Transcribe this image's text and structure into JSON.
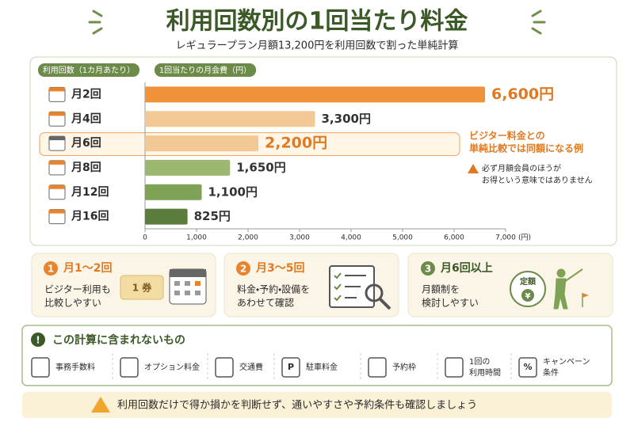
{
  "chart_data": {
    "type": "bar",
    "orientation": "horizontal",
    "title": "利用回数別の1回当たり料金",
    "subtitle": "レギュラープラン月額13,200円を利用回数で割った単純計算",
    "category_header": "利用回数（1カ月あたり）",
    "value_header": "1回当たりの月会費（円）",
    "categories": [
      "月2回",
      "月4回",
      "月6回",
      "月8回",
      "月12回",
      "月16回"
    ],
    "values": [
      6600,
      3300,
      2200,
      1650,
      1100,
      825
    ],
    "value_labels": [
      "6,600円",
      "3,300円",
      "2,200円",
      "1,650円",
      "1,100円",
      "825円"
    ],
    "colors": [
      "#f0923a",
      "#f2c994",
      "#f2c994",
      "#9cb770",
      "#7ea256",
      "#5b7d3b"
    ],
    "highlight_index": 2,
    "xlim": [
      0,
      7000
    ],
    "xticks": [
      0,
      {
        "value": 1000,
        "label": "1,000"
      },
      {
        "value": 2000,
        "label": "2,000"
      },
      {
        "value": 3000,
        "label": "3,000"
      },
      {
        "value": 4000,
        "label": "4,000"
      },
      {
        "value": 5000,
        "label": "5,000"
      },
      {
        "value": 6000,
        "label": "6,000"
      },
      {
        "value": 7000,
        "label": "7,000"
      }
    ],
    "x_label": "(円)",
    "annotation": [
      "ビジター料金との",
      "単純比較では同額になる例"
    ],
    "note": [
      "必ず月額会員のほうが",
      "お得という意味ではありません"
    ]
  },
  "panels": [
    {
      "number": "1",
      "title": "月1～2回",
      "lines": [
        "ビジター利用も",
        "比較しやすい"
      ],
      "icon_text": "1 券"
    },
    {
      "number": "2",
      "title": "月3～5回",
      "lines": [
        "料金・予約・設備を",
        "あわせて確認"
      ]
    },
    {
      "number": "3",
      "title": "月6回以上",
      "lines": [
        "月額制を",
        "検討しやすい"
      ],
      "icon_text": [
        "定額",
        "¥"
      ]
    }
  ],
  "excluded": {
    "title": "この計算に含まれないもの",
    "mark": "!",
    "items": [
      {
        "lines": [
          "事務手数料"
        ]
      },
      {
        "lines": [
          "オプション料金"
        ]
      },
      {
        "lines": [
          "交通費"
        ]
      },
      {
        "lines": [
          "駐車料金"
        ],
        "icon_text": "P"
      },
      {
        "lines": [
          "予約枠"
        ]
      },
      {
        "lines": [
          "1回の",
          "利用時間"
        ]
      },
      {
        "lines": [
          "キャンペーン",
          "条件"
        ],
        "icon_text": "%"
      }
    ]
  },
  "footer": "利用回数だけで得か損かを判断せず、通いやすさや予約条件も確認しましょう"
}
